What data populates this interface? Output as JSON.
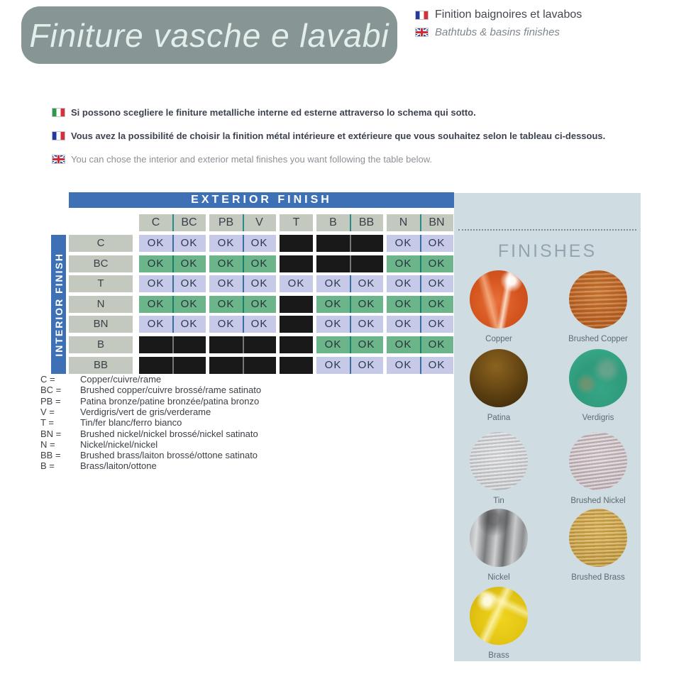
{
  "banner": {
    "title": "Finiture vasche e lavabi"
  },
  "header_right": {
    "fr_label": "Finition baignoires et lavabos",
    "en_label": "Bathtubs & basins finishes"
  },
  "statements": [
    {
      "flag": "it",
      "style": "bold",
      "text": "Si possono scegliere le finiture metalliche interne ed esterne attraverso lo schema qui sotto."
    },
    {
      "flag": "fr",
      "style": "bold",
      "text": "Vous avez la possibilité de choisir la finition métal intérieure et extérieure que vous souhaitez selon le tableau ci-dessous."
    },
    {
      "flag": "uk",
      "style": "gray",
      "text": "You can chose the interior and exterior metal finishes you want following the table below."
    }
  ],
  "matrix": {
    "exterior_label": "EXTERIOR FINISH",
    "interior_label": "INTERIOR FINISH",
    "ok_label": "OK",
    "columns": [
      "C",
      "BC",
      "PB",
      "V",
      "T",
      "B",
      "BB",
      "N",
      "BN"
    ],
    "rows": [
      {
        "label": "C",
        "style": "lavender",
        "cells": [
          1,
          1,
          1,
          1,
          0,
          0,
          0,
          1,
          1
        ]
      },
      {
        "label": "BC",
        "style": "green",
        "cells": [
          1,
          1,
          1,
          1,
          0,
          0,
          0,
          1,
          1
        ]
      },
      {
        "label": "T",
        "style": "lavender",
        "cells": [
          1,
          1,
          1,
          1,
          1,
          1,
          1,
          1,
          1
        ]
      },
      {
        "label": "N",
        "style": "green",
        "cells": [
          1,
          1,
          1,
          1,
          0,
          1,
          1,
          1,
          1
        ]
      },
      {
        "label": "BN",
        "style": "lavender",
        "cells": [
          1,
          1,
          1,
          1,
          0,
          1,
          1,
          1,
          1
        ]
      },
      {
        "label": "B",
        "style": "green",
        "cells": [
          0,
          0,
          0,
          0,
          0,
          1,
          1,
          1,
          1
        ]
      },
      {
        "label": "BB",
        "style": "lavender",
        "cells": [
          0,
          0,
          0,
          0,
          0,
          1,
          1,
          1,
          1
        ]
      }
    ]
  },
  "legend": [
    {
      "key": "C =",
      "text": "Copper/cuivre/rame"
    },
    {
      "key": "BC =",
      "text": "Brushed copper/cuivre brossé/rame satinato"
    },
    {
      "key": "PB =",
      "text": "Patina bronze/patine bronzée/patina bronzo"
    },
    {
      "key": "V =",
      "text": "Verdigris/vert de gris/verderame"
    },
    {
      "key": "T =",
      "text": "Tin/fer blanc/ferro bianco"
    },
    {
      "key": "BN =",
      "text": "Brushed nickel/nickel brossé/nickel satinato"
    },
    {
      "key": "N =",
      "text": "Nickel/nickel/nickel"
    },
    {
      "key": "BB =",
      "text": "Brushed brass/laiton brossé/ottone satinato"
    },
    {
      "key": "B =",
      "text": "Brass/laiton/ottone"
    }
  ],
  "finishes_panel": {
    "title": "FINISHES",
    "swatches": [
      {
        "name": "Copper",
        "finish": "copper"
      },
      {
        "name": "Brushed Copper",
        "finish": "brushed-copper"
      },
      {
        "name": "Patina",
        "finish": "patina"
      },
      {
        "name": "Verdigris",
        "finish": "verdigris"
      },
      {
        "name": "Tin",
        "finish": "tin"
      },
      {
        "name": "Brushed Nickel",
        "finish": "brushed-nickel"
      },
      {
        "name": "Nickel",
        "finish": "nickel"
      },
      {
        "name": "Brushed Brass",
        "finish": "brushed-brass"
      },
      {
        "name": "Brass",
        "finish": "brass"
      }
    ]
  },
  "colors": {
    "banner_gray": "#879594",
    "bar_blue": "#3d70b5",
    "header_box_gray": "#c4c9bf",
    "cell_lavender": "#c6c9e8",
    "cell_green": "#6cb489",
    "cell_black": "#191919",
    "panel_blue": "#cfdde2",
    "panel_title_gray": "#94a4af"
  }
}
